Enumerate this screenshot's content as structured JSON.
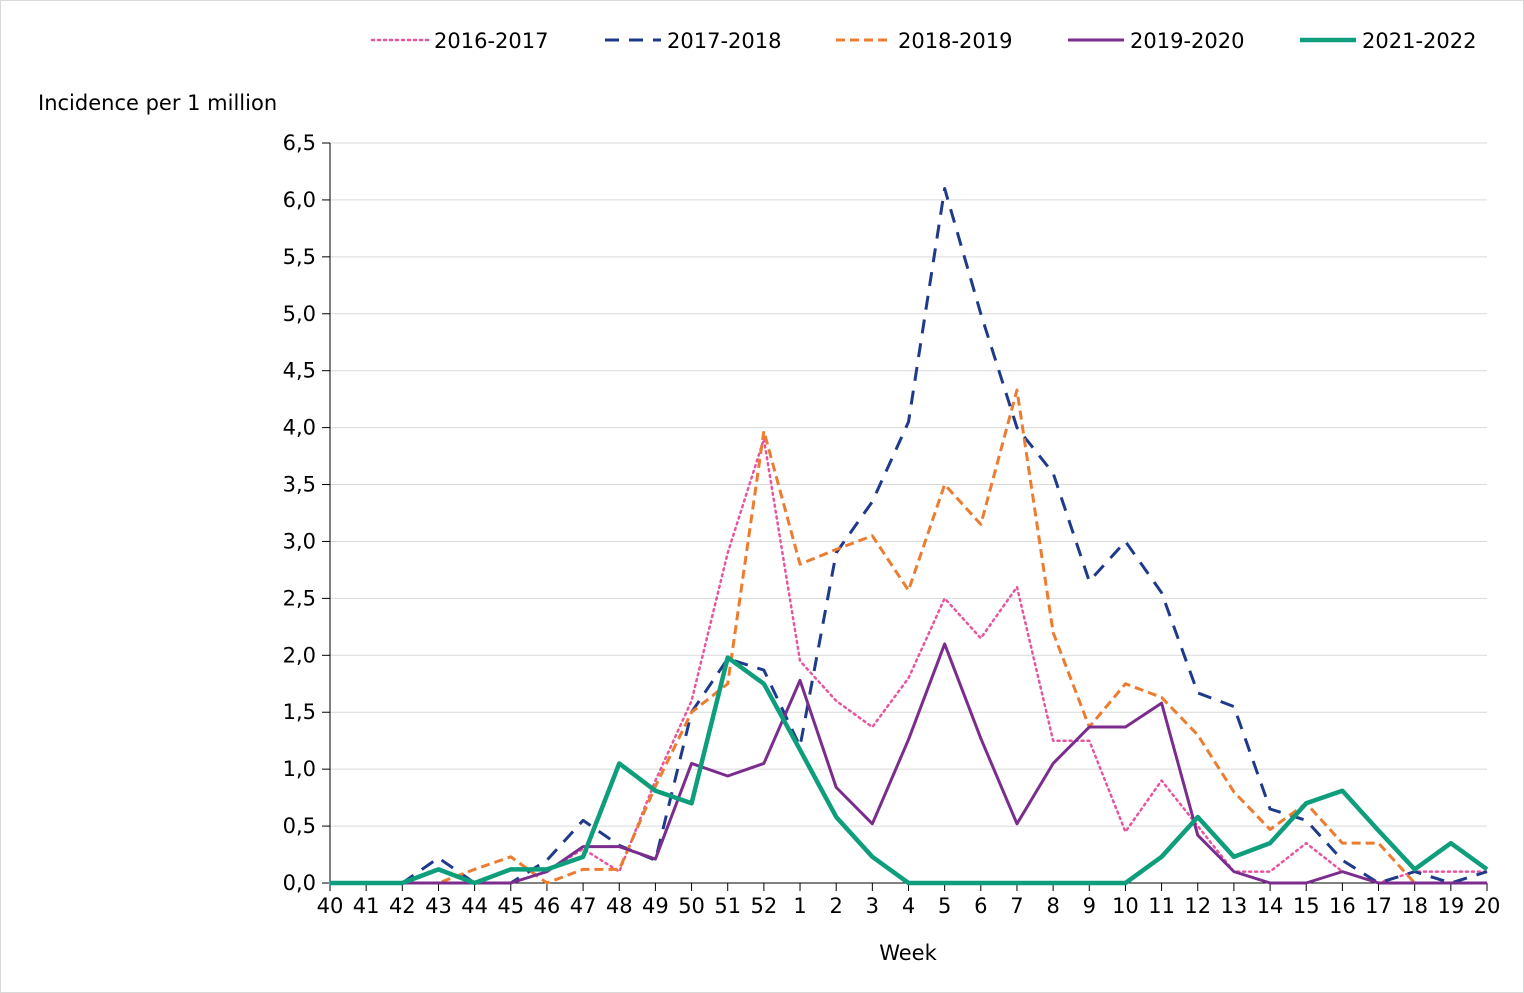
{
  "chart_data": {
    "type": "line",
    "title": "",
    "ylabel": "Incidence per 1 million",
    "xlabel": "Week",
    "ylim": [
      0,
      6.5
    ],
    "yticks": [
      "0,0",
      "0,5",
      "1,0",
      "1,5",
      "2,0",
      "2,5",
      "3,0",
      "3,5",
      "4,0",
      "4,5",
      "5,0",
      "5,5",
      "6,0",
      "6,5"
    ],
    "categories": [
      "40",
      "41",
      "42",
      "43",
      "44",
      "45",
      "46",
      "47",
      "48",
      "49",
      "50",
      "51",
      "52",
      "1",
      "2",
      "3",
      "4",
      "5",
      "6",
      "7",
      "8",
      "9",
      "10",
      "11",
      "12",
      "13",
      "14",
      "15",
      "16",
      "17",
      "18",
      "19",
      "20"
    ],
    "legend_position": "top",
    "grid": true,
    "series": [
      {
        "name": "2016-2017",
        "color": "#e8559f",
        "style": "dotted",
        "values": [
          0,
          0,
          0,
          0,
          0,
          0,
          0.1,
          0.3,
          0.1,
          0.9,
          1.6,
          2.9,
          3.9,
          1.95,
          1.6,
          1.37,
          1.8,
          2.5,
          2.15,
          2.6,
          1.25,
          1.25,
          0.45,
          0.9,
          0.5,
          0.1,
          0.1,
          0.35,
          0.1,
          0,
          0.1,
          0.1,
          0.1
        ]
      },
      {
        "name": "2017-2018",
        "color": "#1f3a8a",
        "style": "dashed",
        "values": [
          0,
          0,
          0,
          0.22,
          0,
          0,
          0.2,
          0.55,
          0.33,
          0.2,
          1.5,
          1.97,
          1.87,
          1.2,
          2.9,
          3.35,
          4.05,
          6.1,
          5.0,
          4.0,
          3.6,
          2.65,
          3.0,
          2.55,
          1.67,
          1.55,
          0.65,
          0.55,
          0.2,
          0,
          0.1,
          0,
          0.1
        ]
      },
      {
        "name": "2018-2019",
        "color": "#ec7c30",
        "style": "dashed-short",
        "values": [
          0,
          0,
          0,
          0,
          0.12,
          0.23,
          0,
          0.12,
          0.12,
          0.85,
          1.5,
          1.75,
          3.97,
          2.8,
          2.93,
          3.05,
          2.57,
          3.5,
          3.15,
          4.33,
          2.2,
          1.37,
          1.75,
          1.63,
          1.3,
          0.8,
          0.47,
          0.7,
          0.35,
          0.35,
          0,
          null,
          null
        ]
      },
      {
        "name": "2019-2020",
        "color": "#7b2d8e",
        "style": "solid",
        "values": [
          0,
          0,
          0,
          0,
          0,
          0,
          0.1,
          0.32,
          0.32,
          0.21,
          1.05,
          0.94,
          1.05,
          1.78,
          0.84,
          0.52,
          1.26,
          2.1,
          1.27,
          0.52,
          1.05,
          1.37,
          1.37,
          1.58,
          0.42,
          0.1,
          0,
          0,
          0.1,
          0,
          0,
          0,
          0
        ]
      },
      {
        "name": "2021-2022",
        "color": "#0e9e7c",
        "style": "solid-thick",
        "values": [
          0,
          0,
          0,
          0.12,
          0,
          0.12,
          0.12,
          0.23,
          1.05,
          0.81,
          0.7,
          1.98,
          1.75,
          1.17,
          0.58,
          0.23,
          0,
          0,
          0,
          0,
          0,
          0,
          0,
          0.23,
          0.58,
          0.23,
          0.35,
          0.7,
          0.81,
          0.46,
          0.12,
          0.35,
          0.12
        ]
      }
    ]
  }
}
